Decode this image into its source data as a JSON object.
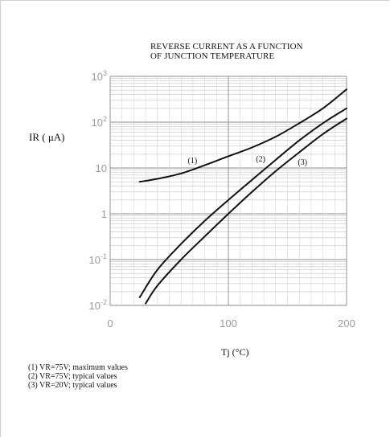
{
  "chart_data": {
    "type": "line",
    "title_lines": [
      "REVERSE CURRENT AS A FUNCTION",
      "OF JUNCTION TEMPERATURE"
    ],
    "ylabel": "IR ( μA)",
    "xlabel": "Tj (°C)",
    "x_range": [
      0,
      200
    ],
    "y_range": [
      0.01,
      1000
    ],
    "y_scale": "log",
    "grid": true,
    "x_ticks": [
      {
        "value": 0,
        "label": "0"
      },
      {
        "value": 100,
        "label": "100"
      },
      {
        "value": 200,
        "label": "200"
      }
    ],
    "y_ticks": [
      {
        "value": 1000,
        "base": "10",
        "exp": "3"
      },
      {
        "value": 100,
        "base": "10",
        "exp": "2"
      },
      {
        "value": 10,
        "base": "10",
        "exp": ""
      },
      {
        "value": 1,
        "base": "1",
        "exp": ""
      },
      {
        "value": 0.1,
        "base": "10",
        "exp": "-1"
      },
      {
        "value": 0.01,
        "base": "10",
        "exp": "-2"
      }
    ],
    "series": [
      {
        "name": "(1)",
        "x": [
          25,
          40,
          60,
          80,
          100,
          120,
          140,
          160,
          180,
          200
        ],
        "y": [
          5,
          5.8,
          7.6,
          11.5,
          18,
          28,
          48,
          95,
          200,
          520
        ]
      },
      {
        "name": "(2)",
        "x": [
          25,
          40,
          60,
          80,
          100,
          120,
          140,
          160,
          180,
          200
        ],
        "y": [
          0.015,
          0.06,
          0.22,
          0.7,
          2,
          5.5,
          15,
          40,
          95,
          200
        ]
      },
      {
        "name": "(3)",
        "x": [
          30,
          40,
          60,
          80,
          100,
          120,
          140,
          160,
          180,
          200
        ],
        "y": [
          0.011,
          0.027,
          0.1,
          0.32,
          1,
          3,
          8.5,
          22,
          55,
          120
        ]
      }
    ],
    "curve_labels": [
      {
        "text": "(1)",
        "x": 71,
        "y": 10
      },
      {
        "text": "(2)",
        "x": 130,
        "y": 10
      },
      {
        "text": "(3)",
        "x": 160,
        "y": 10
      }
    ],
    "legend": [
      "(1) VR=75V; maximum values",
      "(2) VR=75V; typical values",
      "(3) VR=20V; typical values"
    ]
  }
}
